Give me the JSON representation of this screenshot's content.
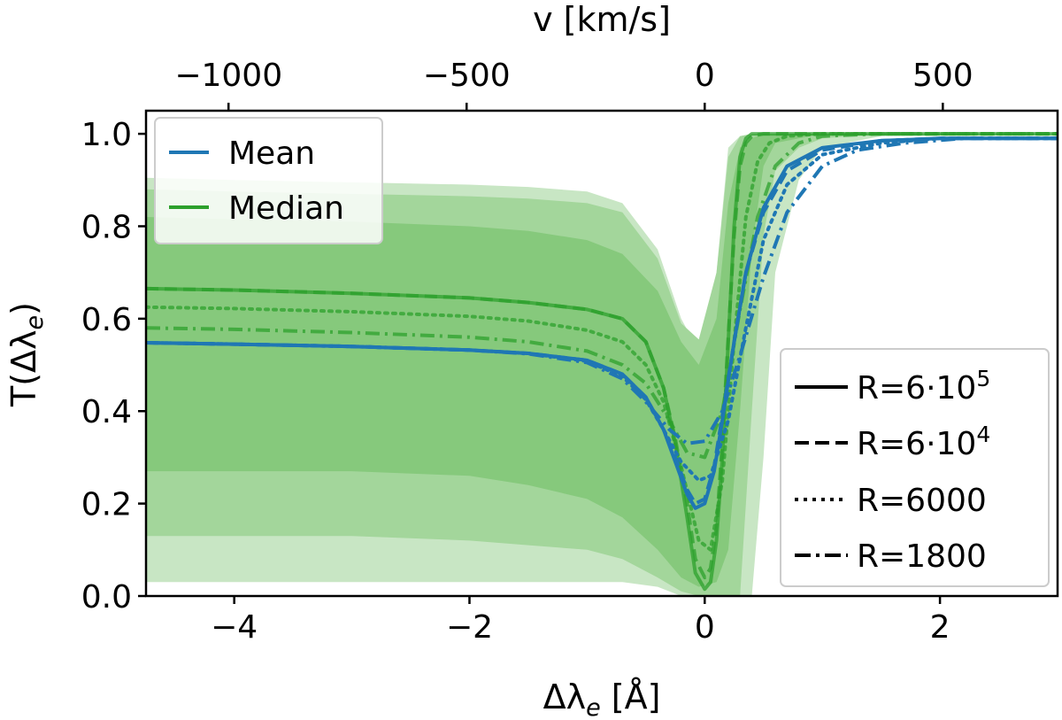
{
  "chart_data": {
    "type": "line",
    "title": "",
    "xlabel_html": "Δλ",
    "xlabel_sub": "e",
    "xlabel_unit": " [Å]",
    "ylabel_pre": "T(Δλ",
    "ylabel_sub": "e",
    "ylabel_post": ")",
    "top_xlabel": "v [km/s]",
    "xlim": [
      -4.75,
      3.0
    ],
    "ylim": [
      0.0,
      1.05
    ],
    "xticks": [
      -4,
      -2,
      0,
      2
    ],
    "xtick_labels": [
      "−4",
      "−2",
      "0",
      "2"
    ],
    "yticks": [
      0.0,
      0.2,
      0.4,
      0.6,
      0.8,
      1.0
    ],
    "ytick_labels": [
      "0.0",
      "0.2",
      "0.4",
      "0.6",
      "0.8",
      "1.0"
    ],
    "top_ticks_angstrom": [
      -4.0487,
      -2.0243,
      0.0,
      2.0243
    ],
    "top_tick_labels": [
      "−1000",
      "−500",
      "0",
      "500"
    ],
    "colors": {
      "mean": "#1f77b4",
      "median": "#2ca02c",
      "band_outer": "#c8e6c4",
      "band_mid": "#a3d69b",
      "band_inner": "#86c97c"
    },
    "legend_stats": [
      {
        "label": "Mean",
        "color": "#1f77b4"
      },
      {
        "label": "Median",
        "color": "#2ca02c"
      }
    ],
    "legend_resolution": [
      {
        "label": "R=6·10",
        "sup": "5",
        "dash": "solid"
      },
      {
        "label": "R=6·10",
        "sup": "4",
        "dash": "dashed"
      },
      {
        "label": "R=6000",
        "sup": "",
        "dash": "dotted"
      },
      {
        "label": "R=1800",
        "sup": "",
        "dash": "dashdot"
      }
    ],
    "bands": {
      "x": [
        -4.75,
        -4.0,
        -3.0,
        -2.0,
        -1.5,
        -1.0,
        -0.7,
        -0.4,
        -0.2,
        -0.05,
        0.1,
        0.2,
        0.3,
        0.4,
        0.5,
        0.6,
        0.8,
        1.0,
        1.5,
        3.0
      ],
      "outer_upper": [
        0.905,
        0.9,
        0.895,
        0.89,
        0.885,
        0.875,
        0.85,
        0.75,
        0.6,
        0.53,
        0.7,
        0.97,
        0.995,
        1.0,
        1.0,
        1.0,
        1.0,
        1.0,
        1.0,
        1.0
      ],
      "outer_lower": [
        0.03,
        0.03,
        0.03,
        0.03,
        0.03,
        0.03,
        0.03,
        0.02,
        0.0,
        0.0,
        0.0,
        0.0,
        0.0,
        0.0,
        0.3,
        0.7,
        0.9,
        0.97,
        0.995,
        1.0
      ],
      "mid_upper": [
        0.88,
        0.875,
        0.87,
        0.865,
        0.86,
        0.85,
        0.83,
        0.73,
        0.59,
        0.555,
        0.7,
        0.95,
        0.995,
        1.0,
        1.0,
        1.0,
        1.0,
        1.0,
        1.0,
        1.0
      ],
      "mid_lower": [
        0.13,
        0.13,
        0.13,
        0.12,
        0.11,
        0.1,
        0.08,
        0.04,
        0.01,
        0.0,
        0.0,
        0.0,
        0.0,
        0.4,
        0.78,
        0.92,
        0.97,
        0.99,
        1.0,
        1.0
      ],
      "inner_upper": [
        0.82,
        0.815,
        0.81,
        0.8,
        0.79,
        0.77,
        0.74,
        0.66,
        0.55,
        0.5,
        0.6,
        0.85,
        0.97,
        0.99,
        1.0,
        1.0,
        1.0,
        1.0,
        1.0,
        1.0
      ],
      "inner_lower": [
        0.27,
        0.27,
        0.27,
        0.26,
        0.24,
        0.21,
        0.17,
        0.1,
        0.04,
        0.02,
        0.03,
        0.1,
        0.4,
        0.75,
        0.93,
        0.98,
        0.99,
        1.0,
        1.0,
        1.0
      ]
    },
    "series": [
      {
        "name": "Median R=6·10^5",
        "stat": "median",
        "dash": "solid",
        "x": [
          -4.75,
          -4.0,
          -3.0,
          -2.0,
          -1.5,
          -1.0,
          -0.7,
          -0.5,
          -0.35,
          -0.25,
          -0.15,
          -0.08,
          0.0,
          0.05,
          0.1,
          0.15,
          0.2,
          0.25,
          0.3,
          0.35,
          0.4,
          0.5,
          0.6,
          0.8,
          1.0,
          1.5,
          3.0
        ],
        "y": [
          0.665,
          0.662,
          0.655,
          0.645,
          0.635,
          0.62,
          0.6,
          0.55,
          0.45,
          0.33,
          0.17,
          0.05,
          0.015,
          0.03,
          0.12,
          0.3,
          0.55,
          0.8,
          0.95,
          0.99,
          1.0,
          1.0,
          1.0,
          1.0,
          1.0,
          1.0,
          1.0
        ]
      },
      {
        "name": "Median R=6·10^4",
        "stat": "median",
        "dash": "dashed",
        "x": [
          -4.75,
          -4.0,
          -3.0,
          -2.0,
          -1.5,
          -1.0,
          -0.7,
          -0.5,
          -0.35,
          -0.25,
          -0.15,
          -0.08,
          0.0,
          0.05,
          0.1,
          0.15,
          0.2,
          0.25,
          0.3,
          0.35,
          0.4,
          0.5,
          0.6,
          0.8,
          1.0,
          1.5,
          3.0
        ],
        "y": [
          0.665,
          0.662,
          0.655,
          0.645,
          0.635,
          0.62,
          0.6,
          0.55,
          0.45,
          0.34,
          0.2,
          0.08,
          0.04,
          0.06,
          0.15,
          0.33,
          0.56,
          0.78,
          0.93,
          0.98,
          0.995,
          1.0,
          1.0,
          1.0,
          1.0,
          1.0,
          1.0
        ]
      },
      {
        "name": "Median R=6000",
        "stat": "median",
        "dash": "dotted",
        "x": [
          -4.75,
          -4.0,
          -3.0,
          -2.0,
          -1.5,
          -1.0,
          -0.7,
          -0.5,
          -0.35,
          -0.2,
          -0.05,
          0.05,
          0.15,
          0.25,
          0.35,
          0.45,
          0.55,
          0.7,
          1.0,
          1.5,
          3.0
        ],
        "y": [
          0.625,
          0.622,
          0.615,
          0.605,
          0.595,
          0.575,
          0.55,
          0.5,
          0.42,
          0.28,
          0.12,
          0.1,
          0.25,
          0.55,
          0.82,
          0.94,
          0.98,
          0.995,
          1.0,
          1.0,
          1.0
        ]
      },
      {
        "name": "Median R=1800",
        "stat": "median",
        "dash": "dashdot",
        "x": [
          -4.75,
          -4.0,
          -3.0,
          -2.0,
          -1.5,
          -1.0,
          -0.7,
          -0.5,
          -0.3,
          -0.15,
          0.0,
          0.15,
          0.3,
          0.45,
          0.6,
          0.8,
          1.0,
          1.5,
          3.0
        ],
        "y": [
          0.58,
          0.577,
          0.57,
          0.56,
          0.55,
          0.53,
          0.5,
          0.46,
          0.38,
          0.31,
          0.3,
          0.4,
          0.62,
          0.82,
          0.93,
          0.98,
          0.995,
          1.0,
          1.0
        ]
      },
      {
        "name": "Mean R=6·10^5",
        "stat": "mean",
        "dash": "solid",
        "x": [
          -4.75,
          -4.0,
          -3.0,
          -2.0,
          -1.5,
          -1.0,
          -0.7,
          -0.5,
          -0.35,
          -0.25,
          -0.15,
          -0.08,
          0.0,
          0.08,
          0.15,
          0.25,
          0.35,
          0.5,
          0.7,
          1.0,
          1.5,
          2.0,
          3.0
        ],
        "y": [
          0.548,
          0.545,
          0.54,
          0.532,
          0.525,
          0.51,
          0.48,
          0.43,
          0.36,
          0.29,
          0.22,
          0.19,
          0.2,
          0.27,
          0.38,
          0.55,
          0.7,
          0.84,
          0.93,
          0.97,
          0.985,
          0.99,
          0.99
        ]
      },
      {
        "name": "Mean R=6·10^4",
        "stat": "mean",
        "dash": "dashed",
        "x": [
          -4.75,
          -4.0,
          -3.0,
          -2.0,
          -1.5,
          -1.0,
          -0.7,
          -0.5,
          -0.35,
          -0.25,
          -0.15,
          -0.08,
          0.0,
          0.08,
          0.15,
          0.25,
          0.35,
          0.5,
          0.7,
          1.0,
          1.5,
          2.0,
          3.0
        ],
        "y": [
          0.548,
          0.545,
          0.54,
          0.532,
          0.525,
          0.51,
          0.48,
          0.43,
          0.36,
          0.3,
          0.23,
          0.2,
          0.21,
          0.28,
          0.39,
          0.55,
          0.7,
          0.83,
          0.92,
          0.965,
          0.985,
          0.99,
          0.99
        ]
      },
      {
        "name": "Mean R=6000",
        "stat": "mean",
        "dash": "dotted",
        "x": [
          -4.75,
          -4.0,
          -3.0,
          -2.0,
          -1.5,
          -1.0,
          -0.7,
          -0.5,
          -0.35,
          -0.2,
          -0.05,
          0.05,
          0.2,
          0.35,
          0.5,
          0.7,
          1.0,
          1.5,
          2.0,
          3.0
        ],
        "y": [
          0.548,
          0.545,
          0.54,
          0.532,
          0.525,
          0.508,
          0.475,
          0.425,
          0.36,
          0.29,
          0.25,
          0.26,
          0.38,
          0.58,
          0.77,
          0.89,
          0.955,
          0.98,
          0.99,
          0.99
        ]
      },
      {
        "name": "Mean R=1800",
        "stat": "mean",
        "dash": "dashdot",
        "x": [
          -4.75,
          -4.0,
          -3.0,
          -2.0,
          -1.5,
          -1.0,
          -0.7,
          -0.5,
          -0.3,
          -0.15,
          0.0,
          0.15,
          0.3,
          0.5,
          0.7,
          1.0,
          1.3,
          1.7,
          2.2,
          3.0
        ],
        "y": [
          0.548,
          0.545,
          0.54,
          0.532,
          0.524,
          0.505,
          0.47,
          0.42,
          0.36,
          0.33,
          0.335,
          0.4,
          0.52,
          0.69,
          0.83,
          0.93,
          0.965,
          0.98,
          0.99,
          0.99
        ]
      }
    ]
  }
}
